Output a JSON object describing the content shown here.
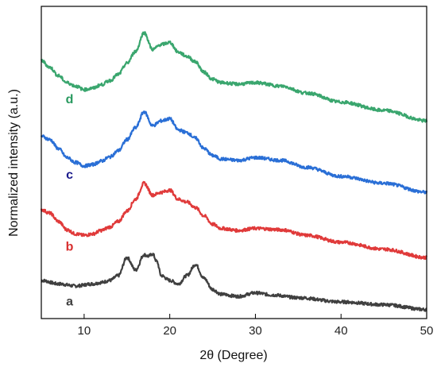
{
  "chart_data": {
    "type": "line",
    "title": "",
    "xlabel": "2θ (Degree)",
    "ylabel": "Normalized intensity (a.u.)",
    "xlim": [
      5,
      50
    ],
    "xticks": [
      10,
      20,
      30,
      40,
      50
    ],
    "ylim": [
      0,
      4.5
    ],
    "yticks_shown": false,
    "grid": false,
    "legend": "none",
    "series": [
      {
        "name": "a",
        "color": "#404040",
        "x": [
          5,
          7,
          9,
          11,
          12,
          13,
          14,
          15,
          16,
          17,
          17.5,
          18,
          18.5,
          19,
          20,
          21,
          22,
          23,
          24,
          25,
          26,
          28,
          30,
          32,
          35,
          40,
          45,
          50
        ],
        "y": [
          0.55,
          0.5,
          0.47,
          0.5,
          0.52,
          0.55,
          0.62,
          0.88,
          0.7,
          0.92,
          0.9,
          0.93,
          0.82,
          0.62,
          0.55,
          0.5,
          0.62,
          0.78,
          0.58,
          0.42,
          0.35,
          0.32,
          0.37,
          0.34,
          0.3,
          0.24,
          0.2,
          0.13
        ]
      },
      {
        "name": "b",
        "color": "#e03a3a",
        "x": [
          5,
          6,
          7,
          8,
          9,
          10,
          11,
          12,
          13,
          14,
          15,
          16,
          17,
          18,
          19,
          20,
          21,
          22,
          23,
          24,
          25,
          26,
          28,
          30,
          33,
          36,
          40,
          45,
          50
        ],
        "y": [
          1.57,
          1.52,
          1.4,
          1.28,
          1.22,
          1.2,
          1.22,
          1.27,
          1.32,
          1.4,
          1.55,
          1.72,
          1.95,
          1.78,
          1.82,
          1.85,
          1.72,
          1.68,
          1.6,
          1.48,
          1.36,
          1.3,
          1.27,
          1.3,
          1.28,
          1.2,
          1.1,
          1.0,
          0.88
        ]
      },
      {
        "name": "c",
        "color": "#2a6fd6",
        "x": [
          5,
          6,
          7,
          8,
          9,
          10,
          11,
          12,
          13,
          14,
          15,
          16,
          17,
          18,
          19,
          20,
          21,
          22,
          23,
          24,
          25,
          26,
          28,
          30,
          33,
          36,
          40,
          45,
          50
        ],
        "y": [
          2.63,
          2.58,
          2.45,
          2.32,
          2.25,
          2.2,
          2.22,
          2.27,
          2.33,
          2.42,
          2.58,
          2.75,
          2.98,
          2.78,
          2.85,
          2.88,
          2.72,
          2.68,
          2.6,
          2.45,
          2.35,
          2.3,
          2.28,
          2.32,
          2.28,
          2.18,
          2.05,
          1.95,
          1.82
        ]
      },
      {
        "name": "d",
        "color": "#3aa66e",
        "x": [
          5,
          6,
          7,
          8,
          9,
          10,
          11,
          12,
          13,
          14,
          15,
          16,
          17,
          18,
          19,
          20,
          21,
          22,
          23,
          24,
          25,
          26,
          28,
          30,
          33,
          36,
          40,
          45,
          50
        ],
        "y": [
          3.72,
          3.62,
          3.5,
          3.4,
          3.35,
          3.3,
          3.32,
          3.37,
          3.43,
          3.52,
          3.68,
          3.85,
          4.12,
          3.88,
          3.95,
          3.98,
          3.84,
          3.78,
          3.7,
          3.55,
          3.45,
          3.4,
          3.38,
          3.4,
          3.35,
          3.25,
          3.12,
          3.0,
          2.85
        ]
      }
    ]
  }
}
